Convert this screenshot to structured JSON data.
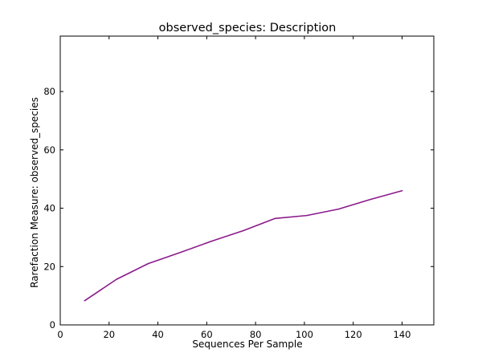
{
  "chart_data": {
    "type": "line",
    "title": "observed_species: Description",
    "xlabel": "Sequences Per Sample",
    "ylabel": "Rarefaction Measure: observed_species",
    "xlim": [
      0,
      153
    ],
    "ylim": [
      0,
      99
    ],
    "xticks": [
      0,
      20,
      40,
      60,
      80,
      100,
      120,
      140
    ],
    "yticks": [
      0,
      20,
      40,
      60,
      80
    ],
    "grid": false,
    "series": [
      {
        "color": "#8b1a8b",
        "x": [
          10,
          23,
          36,
          49,
          62,
          75,
          88,
          101,
          114,
          127,
          140
        ],
        "y": [
          8.3,
          15.6,
          21.0,
          24.8,
          28.7,
          32.3,
          36.5,
          37.5,
          39.7,
          43.0,
          46.0
        ]
      }
    ]
  }
}
